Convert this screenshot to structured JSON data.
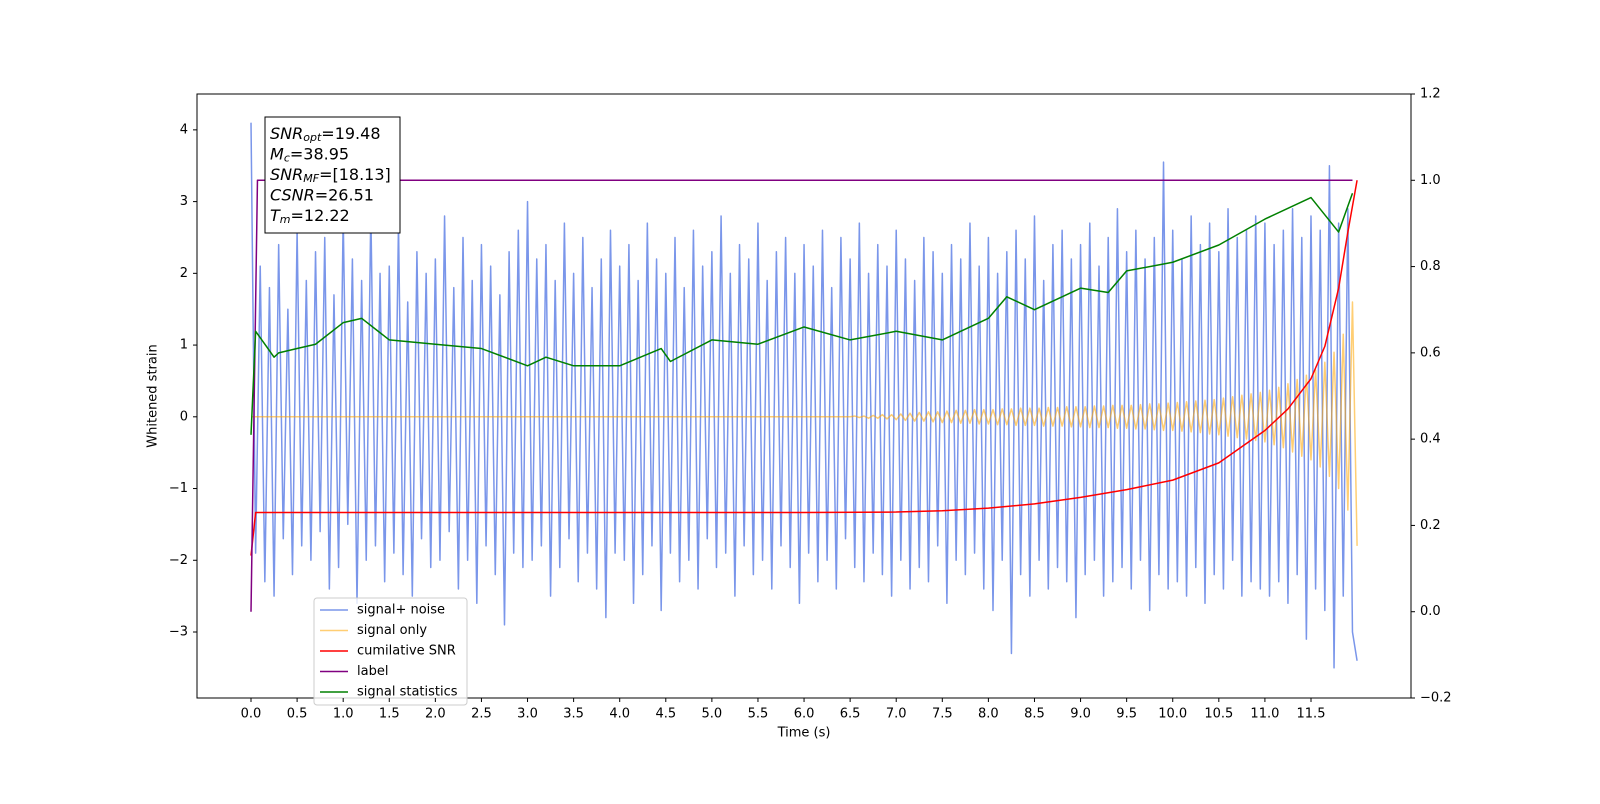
{
  "chart_data": {
    "type": "line",
    "xlabel": "Time (s)",
    "ylabel": "Whitened strain",
    "xlim": [
      -0.586,
      12.585
    ],
    "ylim": [
      -3.92,
      4.5
    ],
    "y2lim": [
      -0.2,
      1.2
    ],
    "xticks": [
      {
        "value": 0,
        "label": "0.0"
      },
      0.5,
      {
        "value": 1,
        "label": "1.0"
      },
      1.5,
      {
        "value": 2,
        "label": "2.0"
      },
      2.5,
      {
        "value": 3,
        "label": "3.0"
      },
      3.5,
      {
        "value": 4,
        "label": "4.0"
      },
      4.5,
      {
        "value": 5,
        "label": "5.0"
      },
      5.5,
      {
        "value": 6,
        "label": "6.0"
      },
      6.5,
      {
        "value": 7,
        "label": "7.0"
      },
      7.5,
      {
        "value": 8,
        "label": "8.0"
      },
      8.5,
      {
        "value": 9,
        "label": "9.0"
      },
      9.5,
      {
        "value": 10,
        "label": "10.0"
      },
      10.5,
      {
        "value": 11,
        "label": "11.0"
      },
      11.5
    ],
    "yticks": [
      {
        "value": -3,
        "label": "−3"
      },
      {
        "value": -2,
        "label": "−2"
      },
      {
        "value": -1,
        "label": "−1"
      },
      0,
      1,
      2,
      3,
      4
    ],
    "y2ticks": [
      {
        "value": -0.2,
        "label": "−0.2"
      },
      {
        "value": 0,
        "label": "0.0"
      },
      0.2,
      0.4,
      0.6,
      0.8,
      {
        "value": 1,
        "label": "1.0"
      },
      1.2
    ],
    "grid": false,
    "legend": "lower left",
    "annotation": {
      "lines": [
        {
          "symbol": "SNR",
          "subscript": "opt",
          "text": "=19.48"
        },
        {
          "symbol": "M",
          "subscript": "c",
          "text": "=38.95"
        },
        {
          "symbol": "SNR",
          "subscript": "MF",
          "text": "=[18.13]"
        },
        {
          "symbol": "CSNR",
          "subscript": "",
          "text": "=26.51"
        },
        {
          "symbol": "T",
          "subscript": "m",
          "text": "=12.22"
        }
      ]
    },
    "x": [
      0,
      0.05,
      0.1,
      0.15,
      0.2,
      0.25,
      0.3,
      0.35,
      0.4,
      0.45,
      0.5,
      0.55,
      0.6,
      0.65,
      0.7,
      0.75,
      0.8,
      0.85,
      0.9,
      0.95,
      1,
      1.05,
      1.1,
      1.15,
      1.2,
      1.25,
      1.3,
      1.35,
      1.4,
      1.45,
      1.5,
      1.55,
      1.6,
      1.65,
      1.7,
      1.75,
      1.8,
      1.85,
      1.9,
      1.95,
      2,
      2.05,
      2.1,
      2.15,
      2.2,
      2.25,
      2.3,
      2.35,
      2.4,
      2.45,
      2.5,
      2.55,
      2.6,
      2.65,
      2.7,
      2.75,
      2.8,
      2.85,
      2.9,
      2.95,
      3,
      3.05,
      3.1,
      3.15,
      3.2,
      3.25,
      3.3,
      3.35,
      3.4,
      3.45,
      3.5,
      3.55,
      3.6,
      3.65,
      3.7,
      3.75,
      3.8,
      3.85,
      3.9,
      3.95,
      4,
      4.05,
      4.1,
      4.15,
      4.2,
      4.25,
      4.3,
      4.35,
      4.4,
      4.45,
      4.5,
      4.55,
      4.6,
      4.65,
      4.7,
      4.75,
      4.8,
      4.85,
      4.9,
      4.95,
      5,
      5.05,
      5.1,
      5.15,
      5.2,
      5.25,
      5.3,
      5.35,
      5.4,
      5.45,
      5.5,
      5.55,
      5.6,
      5.65,
      5.7,
      5.75,
      5.8,
      5.85,
      5.9,
      5.95,
      6,
      6.05,
      6.1,
      6.15,
      6.2,
      6.25,
      6.3,
      6.35,
      6.4,
      6.45,
      6.5,
      6.55,
      6.6,
      6.65,
      6.7,
      6.75,
      6.8,
      6.85,
      6.9,
      6.95,
      7,
      7.05,
      7.1,
      7.15,
      7.2,
      7.25,
      7.3,
      7.35,
      7.4,
      7.45,
      7.5,
      7.55,
      7.6,
      7.65,
      7.7,
      7.75,
      7.8,
      7.85,
      7.9,
      7.95,
      8,
      8.05,
      8.1,
      8.15,
      8.2,
      8.25,
      8.3,
      8.35,
      8.4,
      8.45,
      8.5,
      8.55,
      8.6,
      8.65,
      8.7,
      8.75,
      8.8,
      8.85,
      8.9,
      8.95,
      9,
      9.05,
      9.1,
      9.15,
      9.2,
      9.25,
      9.3,
      9.35,
      9.4,
      9.45,
      9.5,
      9.55,
      9.6,
      9.65,
      9.7,
      9.75,
      9.8,
      9.85,
      9.9,
      9.95,
      10,
      10.05,
      10.1,
      10.15,
      10.2,
      10.25,
      10.3,
      10.35,
      10.4,
      10.45,
      10.5,
      10.55,
      10.6,
      10.65,
      10.7,
      10.75,
      10.8,
      10.85,
      10.9,
      10.95,
      11,
      11.05,
      11.1,
      11.15,
      11.2,
      11.25,
      11.3,
      11.35,
      11.4,
      11.45,
      11.5,
      11.55,
      11.6,
      11.65,
      11.7,
      11.75,
      11.8,
      11.85,
      11.9,
      11.95,
      12
    ],
    "series": [
      {
        "name": "signal+ noise",
        "color": "#4169e1",
        "alpha": 0.7,
        "values": [
          4.1,
          -1.9,
          2.1,
          -2.3,
          1.8,
          -2.5,
          2.4,
          -1.7,
          1.5,
          -2.2,
          2.6,
          -1.8,
          1.9,
          -2.0,
          2.3,
          -1.6,
          2.5,
          -2.4,
          1.7,
          -2.1,
          2.8,
          -1.5,
          2.2,
          -2.6,
          1.9,
          -2.0,
          2.9,
          -1.8,
          2.0,
          -2.3,
          2.1,
          -1.9,
          2.7,
          -2.2,
          1.6,
          -2.5,
          2.3,
          -1.7,
          2.0,
          -2.1,
          2.2,
          -2.0,
          2.8,
          -1.6,
          1.8,
          -2.4,
          2.5,
          -2.0,
          1.9,
          -2.6,
          2.4,
          -1.8,
          2.1,
          -2.2,
          1.7,
          -2.9,
          2.3,
          -1.9,
          2.6,
          -2.1,
          3.0,
          -2.0,
          2.2,
          -1.8,
          2.4,
          -2.5,
          1.9,
          -2.1,
          2.7,
          -1.7,
          2.0,
          -2.3,
          2.5,
          -1.9,
          1.8,
          -2.4,
          2.2,
          -2.8,
          2.6,
          -1.9,
          2.1,
          -2.0,
          2.4,
          -2.6,
          1.9,
          -2.2,
          2.7,
          -1.8,
          2.2,
          -2.7,
          2.0,
          -1.9,
          2.5,
          -2.3,
          1.8,
          -2.0,
          2.6,
          -2.4,
          2.1,
          -1.7,
          2.3,
          -2.1,
          2.8,
          -1.9,
          2.0,
          -2.5,
          2.4,
          -1.8,
          2.2,
          -2.2,
          2.7,
          -2.0,
          1.9,
          -2.4,
          2.3,
          -1.8,
          2.5,
          -2.1,
          2.0,
          -2.6,
          2.4,
          -1.9,
          2.1,
          -2.3,
          2.6,
          -2.0,
          1.8,
          -2.4,
          2.5,
          -1.7,
          2.2,
          -2.1,
          2.7,
          -2.3,
          2.0,
          -1.9,
          2.4,
          -2.2,
          2.1,
          -2.5,
          2.6,
          -2.0,
          2.2,
          -2.4,
          1.9,
          -2.1,
          2.5,
          -2.3,
          2.3,
          -1.8,
          2.0,
          -2.6,
          2.4,
          -2.0,
          2.2,
          -2.2,
          2.7,
          -1.9,
          2.1,
          -2.4,
          2.5,
          -2.7,
          2.0,
          -2.0,
          2.3,
          -3.3,
          2.6,
          -2.2,
          2.2,
          -2.5,
          2.8,
          -2.0,
          1.9,
          -2.4,
          2.4,
          -2.1,
          2.6,
          -2.3,
          2.2,
          -2.8,
          2.4,
          -2.2,
          2.7,
          -2.0,
          2.1,
          -2.5,
          2.5,
          -2.3,
          2.9,
          -2.1,
          2.3,
          -2.4,
          2.6,
          -2.0,
          2.2,
          -2.7,
          2.5,
          -2.2,
          3.55,
          -2.4,
          2.6,
          -2.3,
          2.2,
          -2.5,
          2.8,
          -2.1,
          2.4,
          -2.6,
          2.7,
          -2.2,
          2.3,
          -2.4,
          2.9,
          -2.0,
          2.5,
          -2.5,
          2.6,
          -2.3,
          2.8,
          -2.4,
          2.7,
          -2.5,
          2.4,
          -2.3,
          2.6,
          -2.6,
          2.9,
          -2.2,
          2.5,
          -3.1,
          2.8,
          -2.4,
          2.6,
          -2.7,
          3.5,
          -3.5,
          2.7,
          -2.5,
          2.9,
          -3.0,
          -3.4
        ]
      },
      {
        "name": "signal only",
        "color": "#ffa500",
        "alpha": 0.55,
        "values": [
          0,
          0,
          0,
          0,
          0,
          0,
          0,
          0,
          0,
          0,
          0,
          0,
          0,
          0,
          0,
          0,
          0,
          0,
          0,
          0,
          0,
          0,
          0,
          0,
          0,
          0,
          0,
          0,
          0,
          0,
          0,
          0,
          0,
          0,
          0,
          0,
          0,
          0,
          0,
          0,
          0,
          0,
          0,
          0,
          0,
          0,
          0,
          0,
          0,
          0,
          0,
          0,
          0,
          0,
          0,
          0,
          0,
          0,
          0,
          0,
          0,
          0,
          0,
          0,
          0,
          0,
          0,
          0,
          0,
          0,
          0,
          0,
          0,
          0,
          0,
          0,
          0,
          0,
          0,
          0,
          0,
          0,
          0,
          0,
          0,
          0,
          0,
          0,
          0,
          0,
          0,
          0,
          0,
          0,
          0,
          0,
          0,
          0,
          0,
          0,
          0,
          0,
          0,
          0,
          0,
          0,
          0,
          0,
          0,
          0,
          0,
          0,
          0,
          0,
          0,
          0,
          0,
          0,
          0,
          0,
          0,
          0,
          0,
          0,
          0,
          0,
          0,
          0,
          0,
          0,
          0,
          0.01,
          -0.01,
          0.01,
          -0.02,
          0.02,
          -0.02,
          0.03,
          -0.03,
          0.03,
          -0.04,
          0.04,
          -0.05,
          0.05,
          -0.06,
          0.06,
          -0.06,
          0.07,
          -0.07,
          0.07,
          -0.08,
          0.08,
          -0.08,
          0.09,
          -0.09,
          0.09,
          -0.09,
          0.1,
          -0.1,
          0.1,
          -0.1,
          0.1,
          -0.11,
          0.11,
          -0.11,
          0.11,
          -0.12,
          0.12,
          -0.12,
          0.12,
          -0.12,
          0.12,
          -0.13,
          0.13,
          -0.13,
          0.13,
          -0.13,
          0.14,
          -0.14,
          0.14,
          -0.14,
          0.14,
          -0.15,
          0.15,
          -0.15,
          0.15,
          -0.15,
          0.16,
          -0.16,
          0.16,
          -0.16,
          0.16,
          -0.17,
          0.17,
          -0.17,
          0.18,
          -0.18,
          0.18,
          -0.19,
          0.19,
          -0.19,
          0.2,
          -0.2,
          0.21,
          -0.21,
          0.22,
          -0.22,
          0.23,
          -0.24,
          0.24,
          -0.25,
          0.26,
          -0.27,
          0.28,
          -0.29,
          0.3,
          -0.31,
          0.32,
          -0.33,
          0.34,
          -0.35,
          0.37,
          -0.39,
          0.41,
          -0.43,
          0.46,
          -0.49,
          0.52,
          -0.55,
          0.58,
          -0.6,
          0.65,
          -0.7,
          0.76,
          -0.83,
          0.9,
          -1.0,
          1.15,
          -1.3,
          1.6,
          -1.8
        ]
      },
      {
        "name": "cumilative SNR",
        "color": "#ff0000",
        "alpha": 1,
        "axis": "y2",
        "x": [
          0,
          0.05,
          1,
          2,
          3,
          4,
          5,
          6,
          7,
          7.5,
          8,
          8.5,
          9,
          9.5,
          10,
          10.5,
          11,
          11.25,
          11.5,
          11.65,
          11.8,
          11.9,
          12
        ],
        "values": [
          0.13,
          0.23,
          0.23,
          0.23,
          0.23,
          0.23,
          0.23,
          0.23,
          0.231,
          0.234,
          0.24,
          0.25,
          0.265,
          0.283,
          0.305,
          0.345,
          0.42,
          0.47,
          0.54,
          0.615,
          0.75,
          0.88,
          1.0
        ]
      },
      {
        "name": "label",
        "color": "#800080",
        "alpha": 1,
        "axis": "y2",
        "x": [
          0,
          0.07,
          11.95
        ],
        "values": [
          0.0,
          1.0,
          1.0
        ]
      },
      {
        "name": "signal statistics",
        "color": "#008000",
        "alpha": 1,
        "axis": "y2",
        "x": [
          0,
          0.05,
          0.15,
          0.25,
          0.3,
          0.5,
          0.7,
          1.0,
          1.2,
          1.5,
          2.0,
          2.5,
          3.0,
          3.2,
          3.5,
          4.0,
          4.45,
          4.55,
          5.0,
          5.5,
          6.0,
          6.5,
          7.0,
          7.5,
          8.0,
          8.2,
          8.5,
          9.0,
          9.3,
          9.5,
          10.0,
          10.5,
          11.0,
          11.5,
          11.8,
          11.9,
          11.95
        ],
        "values": [
          0.41,
          0.65,
          0.62,
          0.59,
          0.6,
          0.61,
          0.62,
          0.67,
          0.68,
          0.63,
          0.62,
          0.61,
          0.57,
          0.59,
          0.57,
          0.57,
          0.61,
          0.58,
          0.63,
          0.62,
          0.66,
          0.63,
          0.65,
          0.63,
          0.68,
          0.73,
          0.7,
          0.75,
          0.74,
          0.79,
          0.81,
          0.85,
          0.91,
          0.96,
          0.88,
          0.94,
          0.97
        ]
      }
    ]
  }
}
